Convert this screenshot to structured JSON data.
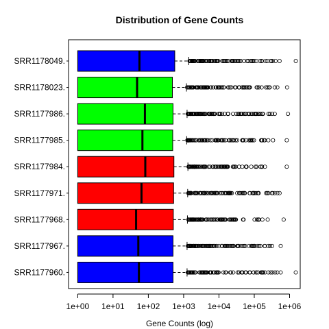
{
  "chart_data": {
    "type": "boxplot",
    "orientation": "horizontal",
    "title": "Distribution of Gene Counts",
    "xlabel": "Gene Counts (log)",
    "ylabel": "",
    "x_scale": "log10",
    "xlim": [
      0.55,
      2000000
    ],
    "x_ticks": [
      1,
      10,
      100,
      1000,
      10000,
      100000,
      1000000
    ],
    "x_tick_labels": [
      "1e+00",
      "1e+01",
      "1e+02",
      "1e+03",
      "1e+04",
      "1e+05",
      "1e+06"
    ],
    "grid": false,
    "legend": null,
    "categories": [
      "SRR1178049.",
      "SRR1178023.",
      "SRR1177986.",
      "SRR1177985.",
      "SRR1177984.",
      "SRR1177971.",
      "SRR1177968.",
      "SRR1177967.",
      "SRR1177960."
    ],
    "colors": [
      "#0000ff",
      "#00ff00",
      "#00ff00",
      "#00ff00",
      "#ff0000",
      "#ff0000",
      "#ff0000",
      "#0000ff",
      "#0000ff"
    ],
    "boxes": [
      {
        "name": "SRR1178049.",
        "min": 1,
        "q1": 1,
        "median": 56,
        "q3": 560,
        "whisker_high": 1400,
        "outlier_max": 1500000,
        "far_outliers": [
          400000,
          520000
        ]
      },
      {
        "name": "SRR1178023.",
        "min": 1,
        "q1": 1,
        "median": 48,
        "q3": 480,
        "whisker_high": 1200,
        "outlier_max": 850000,
        "far_outliers": [
          380000,
          450000
        ]
      },
      {
        "name": "SRR1177986.",
        "min": 1,
        "q1": 1,
        "median": 80,
        "q3": 500,
        "whisker_high": 1250,
        "outlier_max": 900000,
        "far_outliers": [
          320000,
          380000
        ]
      },
      {
        "name": "SRR1177985.",
        "min": 1,
        "q1": 1,
        "median": 68,
        "q3": 490,
        "whisker_high": 1220,
        "outlier_max": 830000,
        "far_outliers": [
          250000,
          340000
        ]
      },
      {
        "name": "SRR1177984.",
        "min": 1,
        "q1": 1,
        "median": 82,
        "q3": 530,
        "whisker_high": 1320,
        "outlier_max": 830000,
        "far_outliers": [
          200000
        ]
      },
      {
        "name": "SRR1177971.",
        "min": 1,
        "q1": 1,
        "median": 64,
        "q3": 520,
        "whisker_high": 1300,
        "outlier_max": 520000,
        "far_outliers": [
          380000,
          450000
        ]
      },
      {
        "name": "SRR1177968.",
        "min": 1,
        "q1": 1,
        "median": 45,
        "q3": 510,
        "whisker_high": 1280,
        "outlier_max": 680000,
        "far_outliers": [
          170000,
          240000
        ]
      },
      {
        "name": "SRR1177967.",
        "min": 1,
        "q1": 1,
        "median": 52,
        "q3": 500,
        "whisker_high": 1250,
        "outlier_max": 560000,
        "far_outliers": [
          280000,
          320000
        ]
      },
      {
        "name": "SRR1177960.",
        "min": 1,
        "q1": 1,
        "median": 54,
        "q3": 500,
        "whisker_high": 1250,
        "outlier_max": 1500000,
        "far_outliers": [
          450000,
          560000
        ]
      }
    ]
  }
}
